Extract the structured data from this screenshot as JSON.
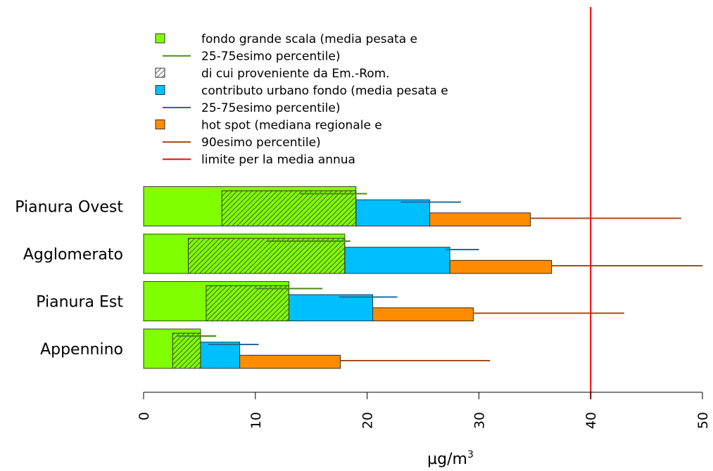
{
  "chart_data": {
    "type": "bar",
    "orientation": "horizontal",
    "stacked": true,
    "categories": [
      "Appennino",
      "Pianura Est",
      "Agglomerato",
      "Pianura Ovest"
    ],
    "xlabel": "µg/m",
    "xlabel_superscript": "3",
    "xlim": [
      0,
      50
    ],
    "xticks": [
      "0",
      "10",
      "20",
      "30",
      "40",
      "50"
    ],
    "grid": false,
    "legend_position": "top-left",
    "colors": {
      "background": "#7FFF00",
      "em_rom": "#333333",
      "urban": "#00BFFF",
      "hotspot": "#FF8C00",
      "background_whisker": "#4A8A1C",
      "urban_whisker": "#1F6F99",
      "hotspot_whisker": "#A0501A",
      "limit": "#FF0000"
    },
    "series": {
      "background": {
        "values": [
          5.1,
          13.0,
          18.0,
          19.0
        ],
        "p25": [
          3.0,
          10.0,
          11.0,
          14.0
        ],
        "p75": [
          6.5,
          16.0,
          18.5,
          20.0
        ]
      },
      "em_rom": {
        "start": [
          2.6,
          5.6,
          4.0,
          7.0
        ],
        "end": [
          5.1,
          13.0,
          18.0,
          19.0
        ]
      },
      "urban": {
        "end": [
          8.6,
          20.5,
          27.4,
          25.6
        ],
        "p25": [
          5.8,
          17.5,
          27.0,
          23.0
        ],
        "p75": [
          10.3,
          22.7,
          30.0,
          28.4
        ]
      },
      "hotspot": {
        "end": [
          17.6,
          29.5,
          36.5,
          34.6
        ],
        "p90": [
          31.0,
          43.0,
          50.0,
          48.1
        ]
      }
    },
    "limit_value": 40,
    "legend": [
      {
        "symbol": "green-box",
        "text": "fondo grande scala (media pesata e"
      },
      {
        "symbol": "green-line",
        "text": "25-75esimo percentile)"
      },
      {
        "symbol": "hatched-box",
        "text": "di cui proveniente da Em.-Rom."
      },
      {
        "symbol": "blue-box",
        "text": "contributo urbano fondo (media pesata e"
      },
      {
        "symbol": "blue-line",
        "text": "25-75esimo percentile)"
      },
      {
        "symbol": "orange-box",
        "text": "hot spot (mediana regionale e"
      },
      {
        "symbol": "orange-line",
        "text": "90esimo percentile)"
      },
      {
        "symbol": "red-line",
        "text": "limite per la media annua"
      }
    ]
  }
}
